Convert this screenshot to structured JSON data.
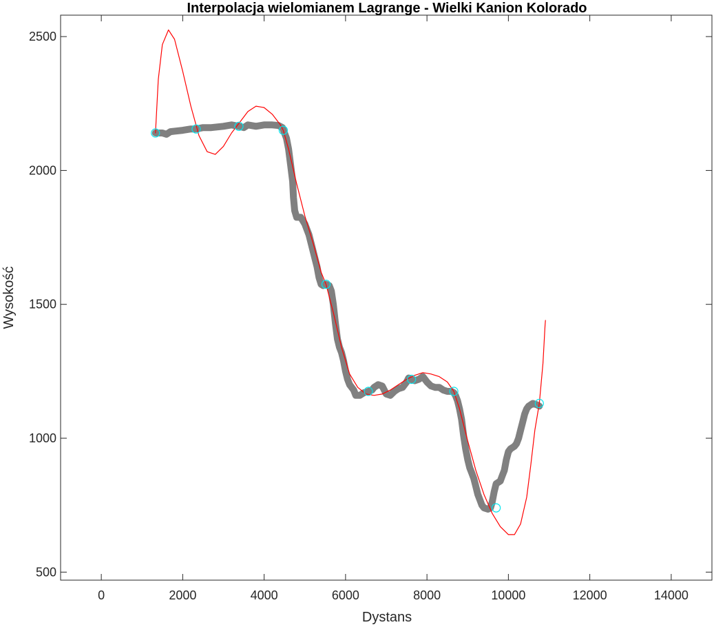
{
  "chart_data": {
    "type": "line",
    "title": "Interpolacja wielomianem Lagrange - Wielki Kanion Kolorado",
    "xlabel": "Dystans",
    "ylabel": "Wysokość",
    "xlim": [
      -1000,
      15000
    ],
    "ylim": [
      470,
      2580
    ],
    "xticks": [
      0,
      2000,
      4000,
      6000,
      8000,
      10000,
      12000,
      14000
    ],
    "yticks": [
      500,
      1000,
      1500,
      2000,
      2500
    ],
    "grid": false,
    "series": [
      {
        "role": "profile",
        "color": "#808080",
        "points": [
          [
            1330,
            2140
          ],
          [
            1500,
            2140
          ],
          [
            1600,
            2135
          ],
          [
            1700,
            2145
          ],
          [
            2000,
            2150
          ],
          [
            2200,
            2155
          ],
          [
            2330,
            2155
          ],
          [
            2500,
            2160
          ],
          [
            2700,
            2160
          ],
          [
            3000,
            2165
          ],
          [
            3200,
            2170
          ],
          [
            3380,
            2165
          ],
          [
            3500,
            2160
          ],
          [
            3600,
            2170
          ],
          [
            3800,
            2165
          ],
          [
            4000,
            2170
          ],
          [
            4200,
            2170
          ],
          [
            4350,
            2168
          ],
          [
            4450,
            2160
          ],
          [
            4500,
            2140
          ],
          [
            4550,
            2120
          ],
          [
            4600,
            2080
          ],
          [
            4650,
            2020
          ],
          [
            4700,
            1960
          ],
          [
            4720,
            1900
          ],
          [
            4750,
            1850
          ],
          [
            4800,
            1825
          ],
          [
            4900,
            1825
          ],
          [
            5000,
            1800
          ],
          [
            5050,
            1780
          ],
          [
            5100,
            1760
          ],
          [
            5200,
            1700
          ],
          [
            5300,
            1640
          ],
          [
            5350,
            1600
          ],
          [
            5400,
            1575
          ],
          [
            5450,
            1570
          ],
          [
            5520,
            1575
          ],
          [
            5600,
            1570
          ],
          [
            5650,
            1550
          ],
          [
            5700,
            1500
          ],
          [
            5750,
            1430
          ],
          [
            5800,
            1370
          ],
          [
            5850,
            1340
          ],
          [
            5900,
            1320
          ],
          [
            5950,
            1290
          ],
          [
            6000,
            1250
          ],
          [
            6050,
            1220
          ],
          [
            6100,
            1200
          ],
          [
            6200,
            1180
          ],
          [
            6250,
            1160
          ],
          [
            6350,
            1160
          ],
          [
            6450,
            1170
          ],
          [
            6560,
            1175
          ],
          [
            6650,
            1180
          ],
          [
            6700,
            1190
          ],
          [
            6800,
            1200
          ],
          [
            6900,
            1195
          ],
          [
            7000,
            1165
          ],
          [
            7100,
            1160
          ],
          [
            7200,
            1175
          ],
          [
            7300,
            1185
          ],
          [
            7400,
            1190
          ],
          [
            7500,
            1210
          ],
          [
            7550,
            1225
          ],
          [
            7600,
            1220
          ],
          [
            7700,
            1215
          ],
          [
            7800,
            1220
          ],
          [
            7900,
            1230
          ],
          [
            8000,
            1210
          ],
          [
            8100,
            1195
          ],
          [
            8200,
            1190
          ],
          [
            8300,
            1190
          ],
          [
            8400,
            1180
          ],
          [
            8500,
            1175
          ],
          [
            8600,
            1175
          ],
          [
            8660,
            1170
          ],
          [
            8700,
            1160
          ],
          [
            8750,
            1140
          ],
          [
            8800,
            1110
          ],
          [
            8850,
            1070
          ],
          [
            8900,
            1010
          ],
          [
            8950,
            960
          ],
          [
            9000,
            920
          ],
          [
            9050,
            890
          ],
          [
            9100,
            870
          ],
          [
            9150,
            850
          ],
          [
            9200,
            820
          ],
          [
            9250,
            790
          ],
          [
            9300,
            770
          ],
          [
            9350,
            750
          ],
          [
            9400,
            740
          ],
          [
            9500,
            735
          ],
          [
            9560,
            740
          ],
          [
            9600,
            760
          ],
          [
            9650,
            800
          ],
          [
            9700,
            830
          ],
          [
            9800,
            840
          ],
          [
            9850,
            860
          ],
          [
            9900,
            880
          ],
          [
            9950,
            920
          ],
          [
            10000,
            950
          ],
          [
            10050,
            960
          ],
          [
            10150,
            970
          ],
          [
            10200,
            980
          ],
          [
            10250,
            1000
          ],
          [
            10300,
            1030
          ],
          [
            10350,
            1060
          ],
          [
            10400,
            1090
          ],
          [
            10450,
            1110
          ],
          [
            10500,
            1120
          ],
          [
            10600,
            1130
          ],
          [
            10700,
            1125
          ],
          [
            10760,
            1120
          ]
        ]
      },
      {
        "role": "interpolation",
        "color": "#ff0000",
        "points": [
          [
            1330,
            2140
          ],
          [
            1400,
            2340
          ],
          [
            1500,
            2470
          ],
          [
            1650,
            2525
          ],
          [
            1800,
            2490
          ],
          [
            2000,
            2370
          ],
          [
            2200,
            2240
          ],
          [
            2400,
            2130
          ],
          [
            2600,
            2070
          ],
          [
            2800,
            2060
          ],
          [
            3000,
            2090
          ],
          [
            3200,
            2140
          ],
          [
            3400,
            2180
          ],
          [
            3600,
            2220
          ],
          [
            3800,
            2240
          ],
          [
            4000,
            2235
          ],
          [
            4200,
            2210
          ],
          [
            4400,
            2170
          ],
          [
            4470,
            2150
          ],
          [
            4600,
            2080
          ],
          [
            4800,
            1950
          ],
          [
            5000,
            1830
          ],
          [
            5200,
            1730
          ],
          [
            5400,
            1620
          ],
          [
            5520,
            1575
          ],
          [
            5700,
            1470
          ],
          [
            5900,
            1340
          ],
          [
            6100,
            1240
          ],
          [
            6300,
            1190
          ],
          [
            6500,
            1165
          ],
          [
            6700,
            1160
          ],
          [
            6900,
            1165
          ],
          [
            7100,
            1180
          ],
          [
            7300,
            1200
          ],
          [
            7500,
            1220
          ],
          [
            7700,
            1235
          ],
          [
            7900,
            1245
          ],
          [
            8100,
            1240
          ],
          [
            8300,
            1230
          ],
          [
            8500,
            1210
          ],
          [
            8660,
            1175
          ],
          [
            8800,
            1110
          ],
          [
            9000,
            990
          ],
          [
            9200,
            880
          ],
          [
            9400,
            790
          ],
          [
            9600,
            720
          ],
          [
            9800,
            670
          ],
          [
            10000,
            640
          ],
          [
            10150,
            640
          ],
          [
            10300,
            680
          ],
          [
            10450,
            780
          ],
          [
            10550,
            900
          ],
          [
            10650,
            1030
          ],
          [
            10760,
            1130
          ],
          [
            10850,
            1280
          ],
          [
            10900,
            1420
          ],
          [
            10910,
            1440
          ]
        ]
      }
    ],
    "nodes": {
      "color": "#00e5ee",
      "points": [
        [
          1330,
          2140
        ],
        [
          2330,
          2155
        ],
        [
          3380,
          2165
        ],
        [
          4470,
          2150
        ],
        [
          5520,
          1575
        ],
        [
          6560,
          1175
        ],
        [
          7620,
          1220
        ],
        [
          8660,
          1175
        ],
        [
          9700,
          740
        ],
        [
          10760,
          1130
        ]
      ]
    }
  }
}
